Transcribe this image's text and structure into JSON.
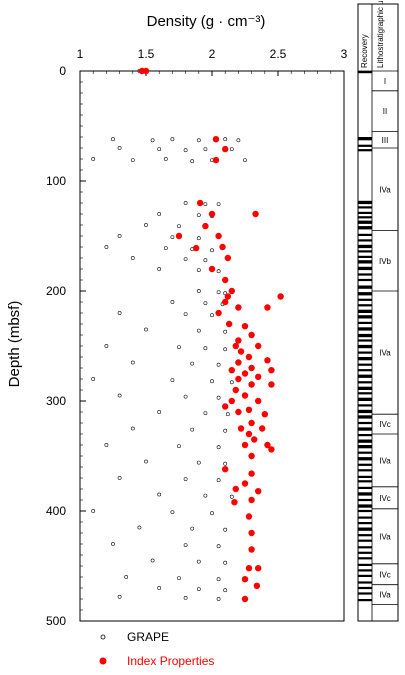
{
  "chart_data": {
    "type": "scatter",
    "title": "Density (g · cm⁻³)",
    "xlabel": "Density (g · cm⁻³)",
    "ylabel": "Depth (mbsf)",
    "xlim": [
      1,
      3
    ],
    "ylim": [
      0,
      500
    ],
    "y_inverted": true,
    "x_axis_position": "top",
    "x_ticks": [
      "1",
      "1.5",
      "2",
      "2.5",
      "3"
    ],
    "y_ticks": [
      "0",
      "100",
      "200",
      "300",
      "400",
      "500"
    ],
    "grid": false,
    "legend": {
      "position": "bottom",
      "entries": [
        "GRAPE",
        "Index Properties"
      ]
    },
    "series": [
      {
        "name": "GRAPE",
        "marker": "open-circle",
        "color": "#000000",
        "points": [
          [
            1.45,
            0
          ],
          [
            1.48,
            0
          ],
          [
            1.25,
            62
          ],
          [
            1.55,
            63
          ],
          [
            1.7,
            62
          ],
          [
            1.9,
            63
          ],
          [
            2.1,
            62
          ],
          [
            2.2,
            63
          ],
          [
            1.3,
            70
          ],
          [
            1.6,
            71
          ],
          [
            1.8,
            72
          ],
          [
            1.95,
            71
          ],
          [
            2.15,
            71
          ],
          [
            1.1,
            80
          ],
          [
            1.4,
            81
          ],
          [
            1.65,
            80
          ],
          [
            1.85,
            82
          ],
          [
            2.0,
            81
          ],
          [
            2.25,
            81
          ],
          [
            1.8,
            120
          ],
          [
            1.95,
            121
          ],
          [
            2.05,
            121
          ],
          [
            1.6,
            130
          ],
          [
            1.9,
            131
          ],
          [
            2.0,
            132
          ],
          [
            1.5,
            140
          ],
          [
            1.75,
            141
          ],
          [
            1.95,
            141
          ],
          [
            1.3,
            150
          ],
          [
            1.7,
            151
          ],
          [
            1.9,
            152
          ],
          [
            1.2,
            160
          ],
          [
            1.65,
            161
          ],
          [
            1.85,
            162
          ],
          [
            2.0,
            163
          ],
          [
            1.4,
            170
          ],
          [
            1.8,
            171
          ],
          [
            1.95,
            172
          ],
          [
            1.6,
            180
          ],
          [
            1.9,
            181
          ],
          [
            2.05,
            182
          ],
          [
            1.9,
            200
          ],
          [
            2.05,
            201
          ],
          [
            2.1,
            202
          ],
          [
            1.7,
            210
          ],
          [
            1.95,
            211
          ],
          [
            2.08,
            212
          ],
          [
            1.3,
            220
          ],
          [
            1.8,
            221
          ],
          [
            2.0,
            222
          ],
          [
            1.5,
            235
          ],
          [
            1.9,
            236
          ],
          [
            2.1,
            237
          ],
          [
            1.2,
            250
          ],
          [
            1.75,
            251
          ],
          [
            1.95,
            252
          ],
          [
            2.1,
            253
          ],
          [
            1.4,
            265
          ],
          [
            1.85,
            266
          ],
          [
            2.05,
            267
          ],
          [
            1.1,
            280
          ],
          [
            1.7,
            281
          ],
          [
            2.0,
            282
          ],
          [
            2.15,
            283
          ],
          [
            1.3,
            295
          ],
          [
            1.8,
            296
          ],
          [
            2.05,
            297
          ],
          [
            1.6,
            310
          ],
          [
            1.95,
            311
          ],
          [
            2.12,
            312
          ],
          [
            1.4,
            325
          ],
          [
            1.85,
            326
          ],
          [
            2.1,
            327
          ],
          [
            1.2,
            340
          ],
          [
            1.75,
            341
          ],
          [
            2.05,
            342
          ],
          [
            1.5,
            355
          ],
          [
            1.9,
            356
          ],
          [
            2.1,
            357
          ],
          [
            1.3,
            370
          ],
          [
            1.8,
            371
          ],
          [
            2.05,
            372
          ],
          [
            1.6,
            385
          ],
          [
            1.95,
            386
          ],
          [
            2.15,
            387
          ],
          [
            1.1,
            400
          ],
          [
            1.7,
            401
          ],
          [
            2.0,
            402
          ],
          [
            1.45,
            415
          ],
          [
            1.85,
            416
          ],
          [
            2.1,
            417
          ],
          [
            1.25,
            430
          ],
          [
            1.8,
            431
          ],
          [
            2.05,
            432
          ],
          [
            1.55,
            445
          ],
          [
            1.9,
            446
          ],
          [
            2.1,
            447
          ],
          [
            1.35,
            460
          ],
          [
            1.75,
            461
          ],
          [
            2.05,
            462
          ],
          [
            1.6,
            470
          ],
          [
            1.9,
            471
          ],
          [
            2.1,
            472
          ],
          [
            1.3,
            478
          ],
          [
            1.8,
            479
          ],
          [
            2.05,
            480
          ]
        ]
      },
      {
        "name": "Index Properties",
        "marker": "filled-circle",
        "color": "#ff0000",
        "points": [
          [
            1.47,
            0
          ],
          [
            1.5,
            0
          ],
          [
            2.03,
            62
          ],
          [
            2.1,
            71
          ],
          [
            2.03,
            81
          ],
          [
            1.91,
            120
          ],
          [
            2.0,
            130
          ],
          [
            2.33,
            130
          ],
          [
            1.95,
            141
          ],
          [
            1.75,
            150
          ],
          [
            2.05,
            150
          ],
          [
            2.08,
            160
          ],
          [
            1.88,
            161
          ],
          [
            2.12,
            170
          ],
          [
            2.0,
            180
          ],
          [
            2.1,
            190
          ],
          [
            2.15,
            200
          ],
          [
            2.12,
            205
          ],
          [
            2.52,
            205
          ],
          [
            2.1,
            210
          ],
          [
            2.2,
            215
          ],
          [
            2.42,
            215
          ],
          [
            2.05,
            220
          ],
          [
            2.13,
            230
          ],
          [
            2.25,
            232
          ],
          [
            2.3,
            240
          ],
          [
            2.2,
            245
          ],
          [
            2.18,
            250
          ],
          [
            2.35,
            250
          ],
          [
            2.22,
            255
          ],
          [
            2.28,
            260
          ],
          [
            2.42,
            263
          ],
          [
            2.2,
            265
          ],
          [
            2.3,
            270
          ],
          [
            2.15,
            272
          ],
          [
            2.45,
            272
          ],
          [
            2.25,
            275
          ],
          [
            2.35,
            278
          ],
          [
            2.2,
            280
          ],
          [
            2.3,
            285
          ],
          [
            2.45,
            285
          ],
          [
            2.18,
            290
          ],
          [
            2.25,
            295
          ],
          [
            2.15,
            300
          ],
          [
            2.35,
            300
          ],
          [
            2.1,
            305
          ],
          [
            2.28,
            308
          ],
          [
            2.2,
            310
          ],
          [
            2.4,
            312
          ],
          [
            2.3,
            320
          ],
          [
            2.22,
            325
          ],
          [
            2.38,
            325
          ],
          [
            2.28,
            330
          ],
          [
            2.32,
            335
          ],
          [
            2.25,
            340
          ],
          [
            2.42,
            340
          ],
          [
            2.45,
            344
          ],
          [
            2.3,
            350
          ],
          [
            2.1,
            362
          ],
          [
            2.3,
            366
          ],
          [
            2.25,
            375
          ],
          [
            2.18,
            380
          ],
          [
            2.35,
            382
          ],
          [
            2.3,
            390
          ],
          [
            2.17,
            392
          ],
          [
            2.28,
            405
          ],
          [
            2.3,
            420
          ],
          [
            2.3,
            435
          ],
          [
            2.28,
            452
          ],
          [
            2.35,
            452
          ],
          [
            2.25,
            462
          ],
          [
            2.34,
            468
          ],
          [
            2.25,
            480
          ]
        ]
      }
    ]
  },
  "strip": {
    "recovery_label": "Recovery",
    "litho_label": "Lithostratigraphic units",
    "units": [
      {
        "label": "I",
        "top": 0,
        "bottom": 18
      },
      {
        "label": "II",
        "top": 18,
        "bottom": 55
      },
      {
        "label": "III",
        "top": 55,
        "bottom": 70
      },
      {
        "label": "IVa",
        "top": 70,
        "bottom": 145
      },
      {
        "label": "IVb",
        "top": 145,
        "bottom": 200
      },
      {
        "label": "IVa",
        "top": 200,
        "bottom": 312
      },
      {
        "label": "IVc",
        "top": 312,
        "bottom": 330
      },
      {
        "label": "IVa",
        "top": 330,
        "bottom": 378
      },
      {
        "label": "IVc",
        "top": 378,
        "bottom": 398
      },
      {
        "label": "IVa",
        "top": 398,
        "bottom": 448
      },
      {
        "label": "IVc",
        "top": 448,
        "bottom": 467
      },
      {
        "label": "IVa",
        "top": 467,
        "bottom": 485
      }
    ],
    "recovery_blocks": [
      [
        0,
        2
      ],
      [
        60,
        63
      ],
      [
        67,
        69
      ],
      [
        71,
        73
      ],
      [
        118,
        121
      ],
      [
        123,
        125
      ],
      [
        128,
        130
      ],
      [
        132,
        134
      ],
      [
        136,
        139
      ],
      [
        141,
        144
      ],
      [
        148,
        150
      ],
      [
        153,
        155
      ],
      [
        158,
        161
      ],
      [
        163,
        165
      ],
      [
        168,
        170
      ],
      [
        172,
        175
      ],
      [
        178,
        181
      ],
      [
        184,
        186
      ],
      [
        189,
        191
      ],
      [
        195,
        198
      ],
      [
        201,
        204
      ],
      [
        207,
        209
      ],
      [
        212,
        214
      ],
      [
        217,
        220
      ],
      [
        222,
        225
      ],
      [
        228,
        230
      ],
      [
        233,
        236
      ],
      [
        239,
        242
      ],
      [
        244,
        246
      ],
      [
        249,
        252
      ],
      [
        255,
        257
      ],
      [
        260,
        263
      ],
      [
        266,
        268
      ],
      [
        271,
        273
      ],
      [
        276,
        279
      ],
      [
        282,
        284
      ],
      [
        287,
        290
      ],
      [
        292,
        294
      ],
      [
        297,
        300
      ],
      [
        303,
        305
      ],
      [
        308,
        311
      ],
      [
        313,
        316
      ],
      [
        319,
        321
      ],
      [
        324,
        327
      ],
      [
        330,
        332
      ],
      [
        335,
        338
      ],
      [
        340,
        343
      ],
      [
        346,
        348
      ],
      [
        351,
        354
      ],
      [
        357,
        359
      ],
      [
        362,
        364
      ],
      [
        368,
        370
      ],
      [
        372,
        374
      ],
      [
        378,
        380
      ],
      [
        383,
        386
      ],
      [
        389,
        391
      ],
      [
        394,
        397
      ],
      [
        399,
        401
      ],
      [
        405,
        407
      ],
      [
        410,
        412
      ],
      [
        415,
        418
      ],
      [
        421,
        423
      ],
      [
        426,
        428
      ],
      [
        432,
        434
      ],
      [
        437,
        439
      ],
      [
        442,
        444
      ],
      [
        448,
        450
      ],
      [
        453,
        455
      ],
      [
        458,
        460
      ],
      [
        464,
        466
      ],
      [
        469,
        471
      ],
      [
        474,
        476
      ],
      [
        480,
        482
      ]
    ]
  }
}
